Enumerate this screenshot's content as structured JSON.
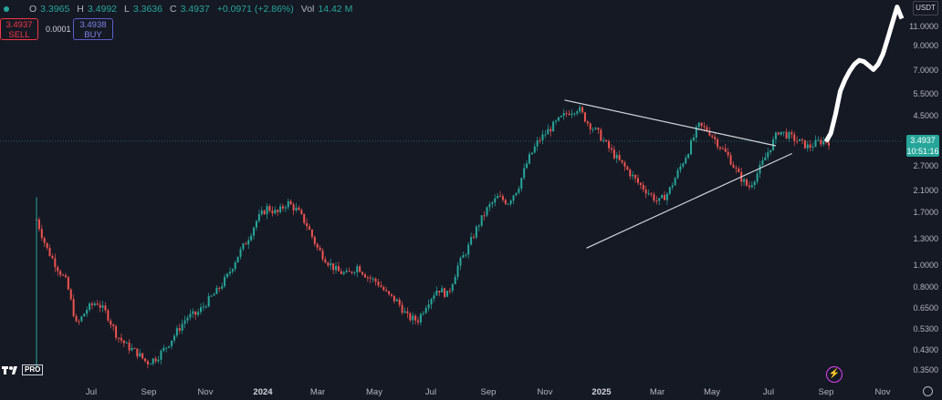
{
  "legend": {
    "open_label": "O",
    "open": "3.3965",
    "high_label": "H",
    "high": "3.4992",
    "low_label": "L",
    "low": "3.3636",
    "close_label": "C",
    "close": "3.4937",
    "change": "+0.0971 (+2.86%)",
    "vol_label": "Vol",
    "vol": "14.42 M"
  },
  "trade": {
    "sell_price": "3.4937",
    "sell_label": "SELL",
    "spread": "0.0001",
    "buy_price": "3.4938",
    "buy_label": "BUY"
  },
  "currency": "USDT",
  "price_axis": [
    "11.0000",
    "9.0000",
    "7.0000",
    "5.5000",
    "4.5000",
    "2.7000",
    "2.1000",
    "1.7000",
    "1.3000",
    "1.0000",
    "0.8000",
    "0.6500",
    "0.5300",
    "0.4300",
    "0.3500"
  ],
  "current_price": "3.4937",
  "countdown": "10:51:16",
  "time_axis": [
    "Jul",
    "Sep",
    "Nov",
    "2024",
    "Mar",
    "May",
    "Jul",
    "Sep",
    "Nov",
    "2025",
    "Mar",
    "May",
    "Jul",
    "Sep",
    "Nov"
  ],
  "logo_text": "PRO",
  "colors": {
    "background": "#151924",
    "up": "#26a69a",
    "down": "#ef5350",
    "projection": "#ffffff",
    "trendline": "#d1d4dc"
  },
  "chart_data": {
    "type": "candlestick",
    "scale": "log",
    "ylim": [
      0.35,
      14
    ],
    "approx_closes": [
      1.6,
      1.2,
      1.0,
      0.85,
      0.55,
      0.65,
      0.7,
      0.62,
      0.5,
      0.45,
      0.42,
      0.38,
      0.4,
      0.45,
      0.52,
      0.6,
      0.62,
      0.7,
      0.78,
      0.9,
      1.1,
      1.3,
      1.6,
      1.8,
      1.7,
      1.9,
      1.75,
      1.5,
      1.2,
      1.05,
      0.95,
      0.92,
      1.0,
      0.9,
      0.85,
      0.75,
      0.7,
      0.6,
      0.58,
      0.7,
      0.8,
      0.75,
      1.0,
      1.2,
      1.5,
      1.8,
      2.0,
      1.9,
      2.2,
      2.9,
      3.5,
      3.9,
      4.3,
      4.7,
      4.9,
      4.2,
      3.8,
      3.3,
      2.9,
      2.6,
      2.3,
      2.1,
      1.9,
      2.1,
      2.6,
      3.2,
      4.1,
      3.9,
      3.4,
      3.0,
      2.5,
      2.2,
      2.6,
      3.2,
      3.9,
      3.7,
      3.5,
      3.3,
      3.5,
      3.4937
    ],
    "projection": [
      3.4937,
      3.8,
      4.6,
      5.8,
      6.5,
      7.1,
      7.6,
      7.9,
      7.8,
      7.5,
      7.2,
      7.6,
      8.4,
      9.8,
      11.5,
      13.5,
      12.0
    ],
    "trendline_upper": [
      [
        0.65,
        5.3
      ],
      [
        0.91,
        3.35
      ]
    ],
    "trendline_lower": [
      [
        0.677,
        1.2
      ],
      [
        0.93,
        3.1
      ]
    ]
  }
}
